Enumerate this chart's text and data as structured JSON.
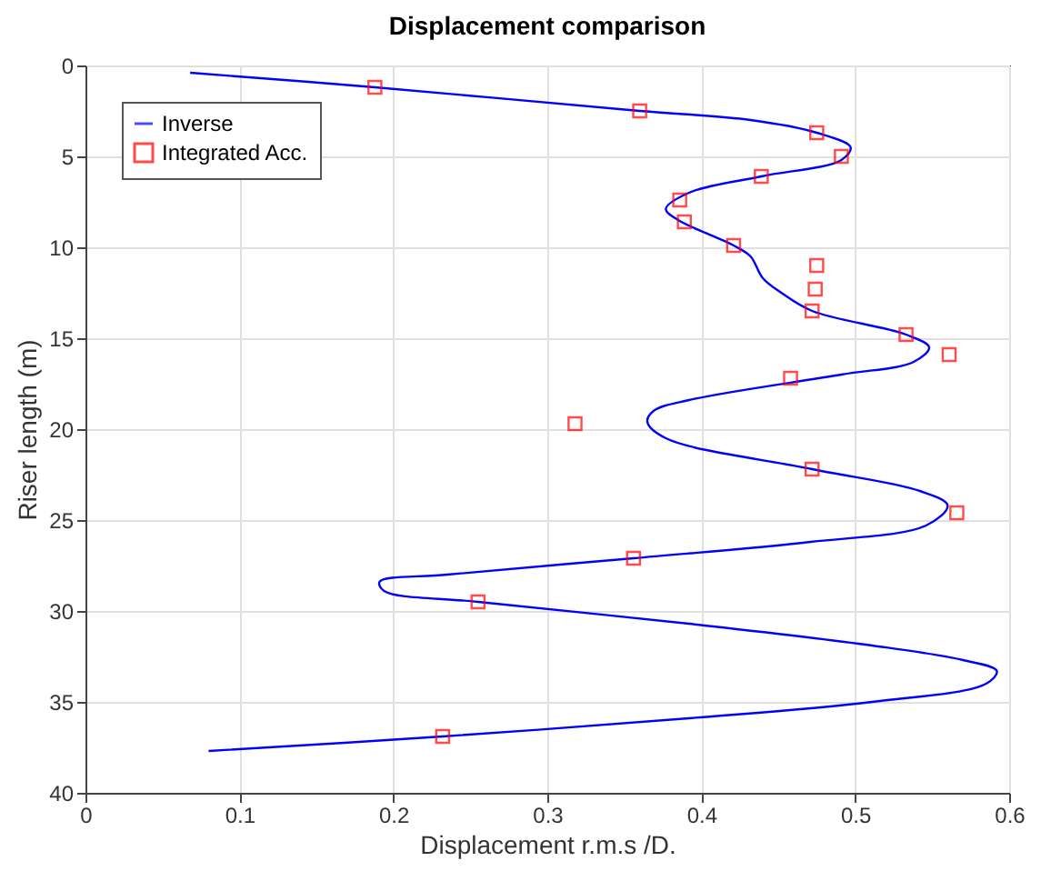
{
  "chart_data": {
    "type": "line",
    "title": "Displacement comparison",
    "xlabel": "Displacement r.m.s /D.",
    "ylabel": "Riser length (m)",
    "xlim": [
      0,
      0.6
    ],
    "xticks": [
      0,
      0.1,
      0.2,
      0.3,
      0.4,
      0.5,
      0.6
    ],
    "ylim": [
      40,
      0
    ],
    "yticks": [
      0,
      5,
      10,
      15,
      20,
      25,
      30,
      35,
      40
    ],
    "grid": true,
    "legend": "top left",
    "line_style": "solid",
    "series": [
      {
        "name": "Inverse",
        "marker": "none",
        "color": "#0000ff",
        "x": [
          0.068,
          0.188,
          0.36,
          0.432,
          0.475,
          0.497,
          0.491,
          0.439,
          0.392,
          0.377,
          0.385,
          0.421,
          0.432,
          0.44,
          0.452,
          0.472,
          0.533,
          0.548,
          0.538,
          0.491,
          0.392,
          0.369,
          0.365,
          0.377,
          0.472,
          0.542,
          0.56,
          0.546,
          0.471,
          0.356,
          0.235,
          0.191,
          0.194,
          0.255,
          0.392,
          0.511,
          0.57,
          0.592,
          0.585,
          0.511,
          0.392,
          0.232,
          0.08
        ],
        "values": [
          0.4,
          1.2,
          2.5,
          3.0,
          3.7,
          4.5,
          5.2,
          6.1,
          7.0,
          7.9,
          8.5,
          9.9,
          10.5,
          11.7,
          12.5,
          13.5,
          14.8,
          15.5,
          16.3,
          17.0,
          18.4,
          19.0,
          19.6,
          20.5,
          22.2,
          23.4,
          24.2,
          25.3,
          26.2,
          27.1,
          28.0,
          28.4,
          28.9,
          29.5,
          30.7,
          31.9,
          32.7,
          33.3,
          34.0,
          35.0,
          35.9,
          36.9,
          37.7
        ]
      },
      {
        "name": "Integrated Acc.",
        "type": "scatter",
        "marker": "square",
        "color": "#ff0000",
        "x": [
          0.188,
          0.36,
          0.475,
          0.491,
          0.439,
          0.386,
          0.389,
          0.421,
          0.475,
          0.474,
          0.472,
          0.533,
          0.561,
          0.458,
          0.318,
          0.472,
          0.566,
          0.356,
          0.255,
          0.232
        ],
        "values": [
          1.2,
          2.5,
          3.7,
          5.0,
          6.1,
          7.4,
          8.6,
          9.9,
          11.0,
          12.3,
          13.5,
          14.8,
          15.9,
          17.2,
          19.7,
          22.2,
          24.6,
          27.1,
          29.5,
          36.9
        ]
      }
    ]
  }
}
